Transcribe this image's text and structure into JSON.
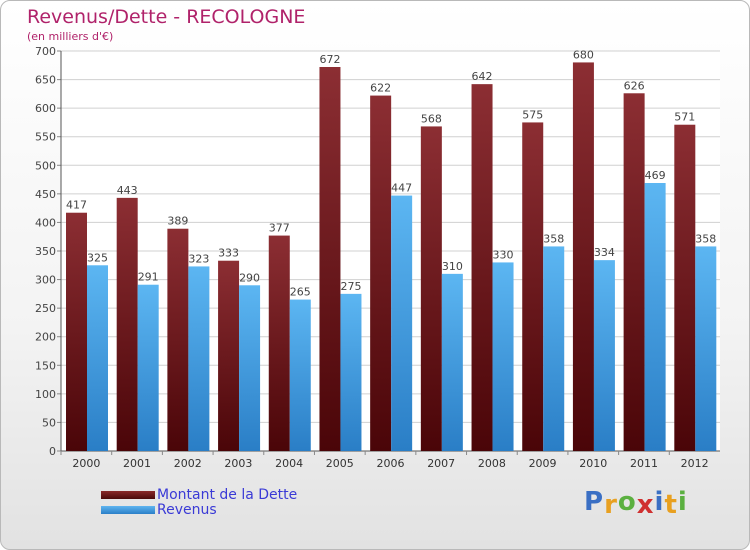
{
  "chart_data": {
    "type": "bar",
    "title": "Revenus/Dette - RECOLOGNE",
    "subtitle": "(en milliers d'€)",
    "categories": [
      "2000",
      "2001",
      "2002",
      "2003",
      "2004",
      "2005",
      "2006",
      "2007",
      "2008",
      "2009",
      "2010",
      "2011",
      "2012"
    ],
    "series": [
      {
        "name": "Montant de la Dette",
        "color": "#7b2020",
        "values": [
          417,
          443,
          389,
          333,
          377,
          672,
          622,
          568,
          642,
          575,
          680,
          626,
          571
        ]
      },
      {
        "name": "Revenus",
        "color": "#4aa3e4",
        "values": [
          325,
          291,
          323,
          290,
          265,
          275,
          447,
          310,
          330,
          358,
          334,
          469,
          358
        ]
      }
    ],
    "ylim": [
      0,
      700
    ],
    "yticks": [
      0,
      50,
      100,
      150,
      200,
      250,
      300,
      350,
      400,
      450,
      500,
      550,
      600,
      650,
      700
    ],
    "grid": true,
    "xlabel": "",
    "ylabel": ""
  },
  "legend": {
    "debt_label": "Montant de la Dette",
    "revenue_label": "Revenus"
  },
  "logo": {
    "letters": [
      "P",
      "r",
      "o",
      "x",
      "i",
      "t",
      "i"
    ],
    "colors": [
      "#3a6fc4",
      "#e8a020",
      "#5bb040",
      "#d03030",
      "#3a6fc4",
      "#e8a020",
      "#5bb040"
    ]
  }
}
